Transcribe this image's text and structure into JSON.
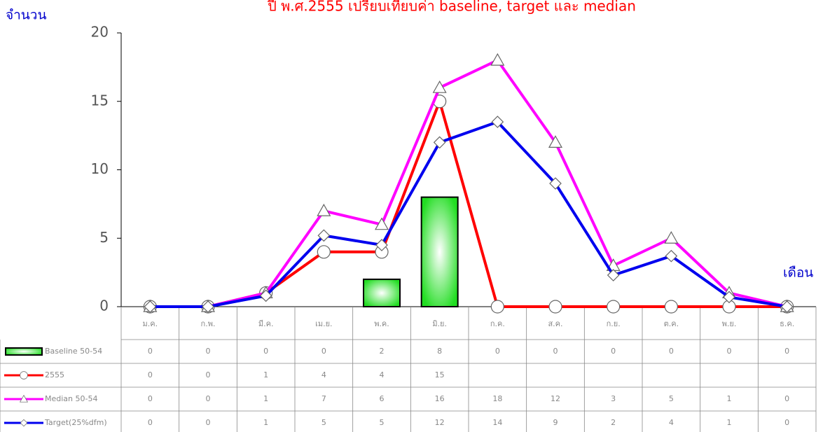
{
  "chart_data": {
    "type": "line",
    "title": "ปี พ.ศ.2555 เปรียบเทียบค่า baseline, target และ median",
    "y_label": "จำนวน",
    "x_label": "เดือน",
    "categories": [
      "ม.ค.",
      "ก.พ.",
      "มี.ค.",
      "เม.ย.",
      "พ.ค.",
      "มิ.ย.",
      "ก.ค.",
      "ส.ค.",
      "ก.ย.",
      "ต.ค.",
      "พ.ย.",
      "ธ.ค."
    ],
    "ylim": [
      0,
      20
    ],
    "yticks": [
      0,
      5,
      10,
      15,
      20
    ],
    "series": [
      {
        "name": "Baseline 50-54",
        "type": "bar",
        "color": "#00cc00",
        "values": [
          0,
          0,
          0,
          0,
          2,
          8,
          0,
          0,
          0,
          0,
          0,
          0
        ]
      },
      {
        "name": "2555",
        "type": "line",
        "marker": "circle",
        "color": "#ff0000",
        "values": [
          0,
          0,
          1,
          4,
          4,
          15,
          0,
          0,
          0,
          0,
          0,
          0
        ],
        "value_labels": [
          "0",
          "0",
          "1",
          "4",
          "4",
          "15",
          null,
          null,
          null,
          null,
          null,
          null
        ]
      },
      {
        "name": "Median 50-54",
        "type": "line",
        "marker": "triangle",
        "color": "#ff00ff",
        "values": [
          0,
          0,
          1,
          7,
          6,
          16,
          18,
          12,
          3,
          5,
          1,
          0
        ]
      },
      {
        "name": "Target(25%dfm)",
        "type": "line",
        "marker": "diamond",
        "color": "#0000ee",
        "values": [
          0,
          0,
          0.8,
          5.2,
          4.5,
          12,
          13.5,
          9,
          2.3,
          3.7,
          0.7,
          0
        ],
        "value_labels": [
          "0",
          "0",
          "1",
          "5",
          "5",
          "12",
          "14",
          "9",
          "2",
          "4",
          "1",
          "0"
        ]
      }
    ]
  }
}
